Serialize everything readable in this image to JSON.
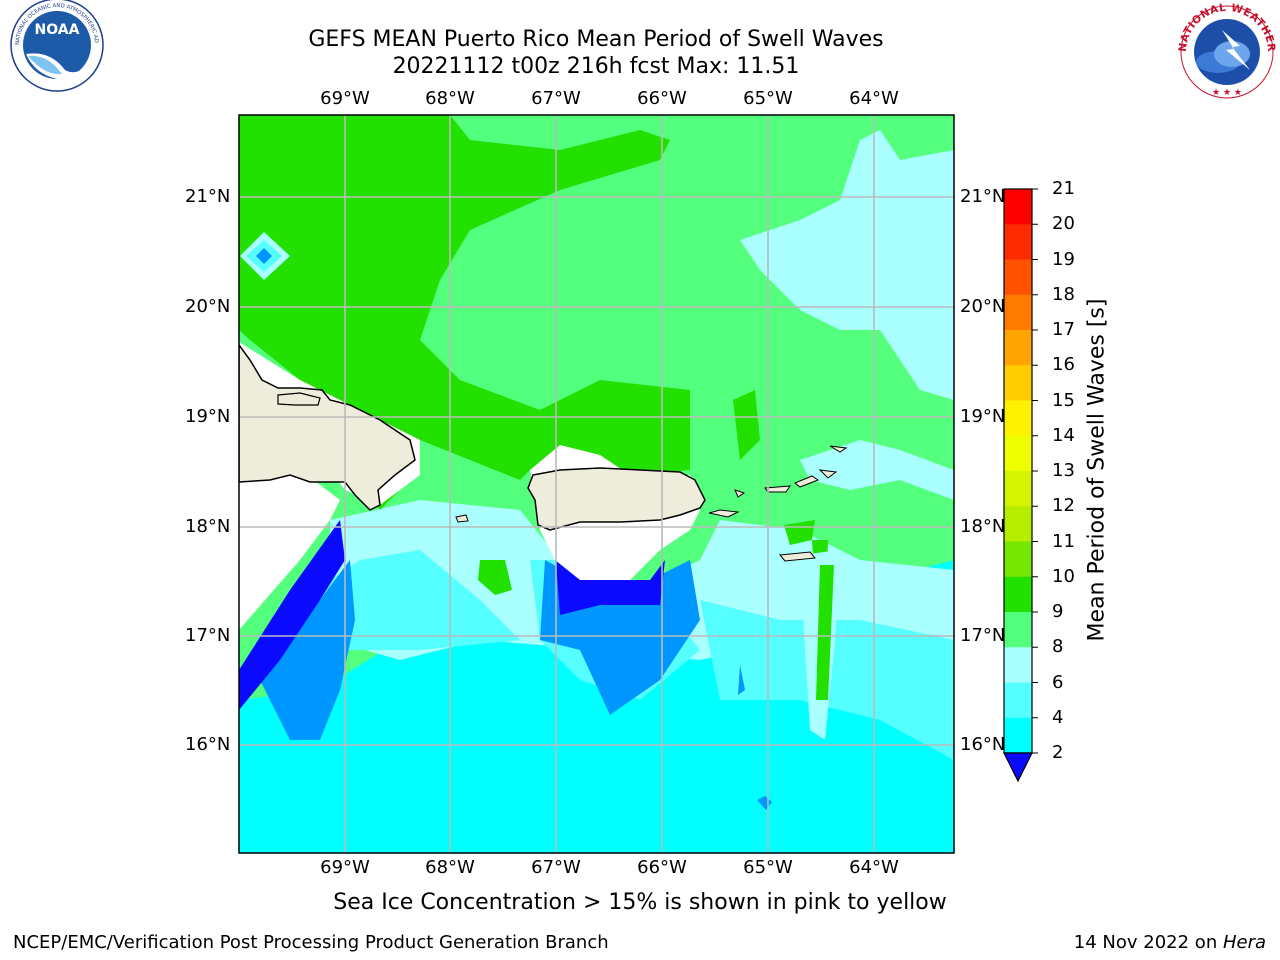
{
  "header": {
    "title_line1": "GEFS MEAN Puerto Rico Mean Period of Swell Waves",
    "title_line2": "20221112 t00z 216h fcst   Max: 11.51"
  },
  "map": {
    "longitudes": [
      "69°W",
      "68°W",
      "67°W",
      "66°W",
      "65°W",
      "64°W"
    ],
    "latitudes": [
      "21°N",
      "20°N",
      "19°N",
      "18°N",
      "17°N",
      "16°N"
    ],
    "land_color": "#eeecdb",
    "coast_color": "#000000",
    "grid_color": "#bbbbbb",
    "no_data_color": "#ffffff"
  },
  "colorbar": {
    "title": "Mean Period of Swell Waves [s]",
    "ticks": [
      "21",
      "20",
      "19",
      "18",
      "17",
      "16",
      "15",
      "14",
      "13",
      "12",
      "11",
      "10",
      "9",
      "8",
      "6",
      "4",
      "2"
    ],
    "colors": [
      "#ff0000",
      "#ff2a00",
      "#ff5200",
      "#ff7b00",
      "#ffa400",
      "#ffcc00",
      "#fff200",
      "#eeff00",
      "#d3f500",
      "#b7ee00",
      "#77e600",
      "#22e000",
      "#55ff7e",
      "#aaffff",
      "#55ffff",
      "#00ffff",
      "#0096ff",
      "#0a0aff"
    ]
  },
  "footer": {
    "ice_note": "Sea Ice Concentration > 15% is shown in pink to yellow",
    "left": "NCEP/EMC/Verification Post Processing Product Generation Branch",
    "date": "14 Nov 2022 on ",
    "machine": "Hera"
  },
  "logos": {
    "noaa_text": "NOAA",
    "noaa_ring": "NATIONAL OCEANIC AND ATMOSPHERIC ADMINISTRATION · U.S. DEPARTMENT OF COMMERCE",
    "nws_ring": "NATIONAL WEATHER SERVICE"
  }
}
